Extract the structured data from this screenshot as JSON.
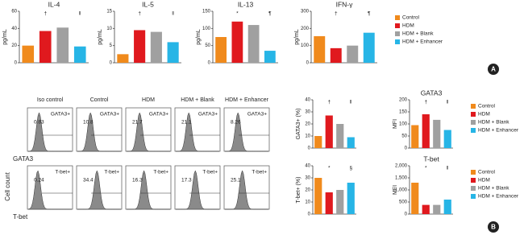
{
  "groups": [
    {
      "name": "Control",
      "color": "#f08a1c"
    },
    {
      "name": "HDM",
      "color": "#e0191e"
    },
    {
      "name": "HDM + Blank",
      "color": "#a0a0a0"
    },
    {
      "name": "HDM + Enhancer",
      "color": "#27b5e6"
    }
  ],
  "panel_labels": [
    "A",
    "B"
  ],
  "chart_data": [
    {
      "type": "bar",
      "title": "IL-4",
      "ylabel": "pg/mL",
      "values": [
        20,
        37,
        41,
        19
      ],
      "annotations": [
        null,
        "†",
        null,
        "‖"
      ],
      "ylim": [
        0,
        60
      ],
      "yticks": [
        0,
        20,
        40,
        60
      ]
    },
    {
      "type": "bar",
      "title": "IL-5",
      "ylabel": "pg/mL",
      "values": [
        2.5,
        9.5,
        9,
        6
      ],
      "annotations": [
        null,
        "†",
        null,
        "‖"
      ],
      "ylim": [
        0,
        15
      ],
      "yticks": [
        0,
        5,
        10,
        15
      ]
    },
    {
      "type": "bar",
      "title": "IL-13",
      "ylabel": "pg/mL",
      "values": [
        75,
        120,
        110,
        35
      ],
      "annotations": [
        null,
        "*",
        null,
        "¶"
      ],
      "ylim": [
        0,
        150
      ],
      "yticks": [
        0,
        50,
        100,
        150
      ]
    },
    {
      "type": "bar",
      "title": "IFN-γ",
      "ylabel": "pg/mL",
      "values": [
        155,
        85,
        100,
        175
      ],
      "annotations": [
        null,
        "†",
        null,
        "¶"
      ],
      "ylim": [
        0,
        300
      ],
      "yticks": [
        0,
        100,
        200,
        300
      ],
      "legend": true
    },
    {
      "type": "bar",
      "ylabel": "GATA3+ (%)",
      "values": [
        10,
        27,
        20,
        9
      ],
      "annotations": [
        null,
        "†",
        null,
        "‖"
      ],
      "ylim": [
        0,
        40
      ],
      "yticks": [
        0,
        10,
        20,
        30,
        40
      ]
    },
    {
      "type": "bar",
      "title": "GATA3",
      "ylabel": "MFI",
      "values": [
        95,
        140,
        117,
        75
      ],
      "annotations": [
        null,
        "†",
        null,
        "‖"
      ],
      "ylim": [
        0,
        200
      ],
      "yticks": [
        0,
        50,
        100,
        150,
        200
      ],
      "legend": true
    },
    {
      "type": "bar",
      "ylabel": "T-bet+ (%)",
      "values": [
        30,
        18,
        20,
        26
      ],
      "annotations": [
        null,
        "*",
        null,
        "§"
      ],
      "ylim": [
        0,
        40
      ],
      "yticks": [
        0,
        10,
        20,
        30,
        40
      ]
    },
    {
      "type": "bar",
      "title": "T-bet",
      "ylabel": "MFI",
      "values": [
        1300,
        380,
        380,
        600
      ],
      "annotations": [
        null,
        "*",
        null,
        "‖"
      ],
      "ylim": [
        0,
        2000
      ],
      "yticks": [
        0,
        500,
        {
          "value": 1000,
          "label": "1,000"
        },
        {
          "value": 1500,
          "label": "1,500"
        },
        {
          "value": 2000,
          "label": "2,000"
        }
      ],
      "legend": true
    }
  ],
  "flow": {
    "columns": [
      "Iso control",
      "Control",
      "HDM",
      "HDM + Blank",
      "HDM + Enhancer"
    ],
    "y_label": "Cell count",
    "rows": [
      {
        "marker": "GATA3",
        "gate": "GATA3+",
        "values": [
          0.83,
          10.8,
          21.7,
          21.1,
          8.26
        ]
      },
      {
        "marker": "T-bet",
        "gate": "T-bet+",
        "values": [
          0.24,
          34.4,
          16.3,
          17.3,
          25.1
        ]
      }
    ]
  }
}
